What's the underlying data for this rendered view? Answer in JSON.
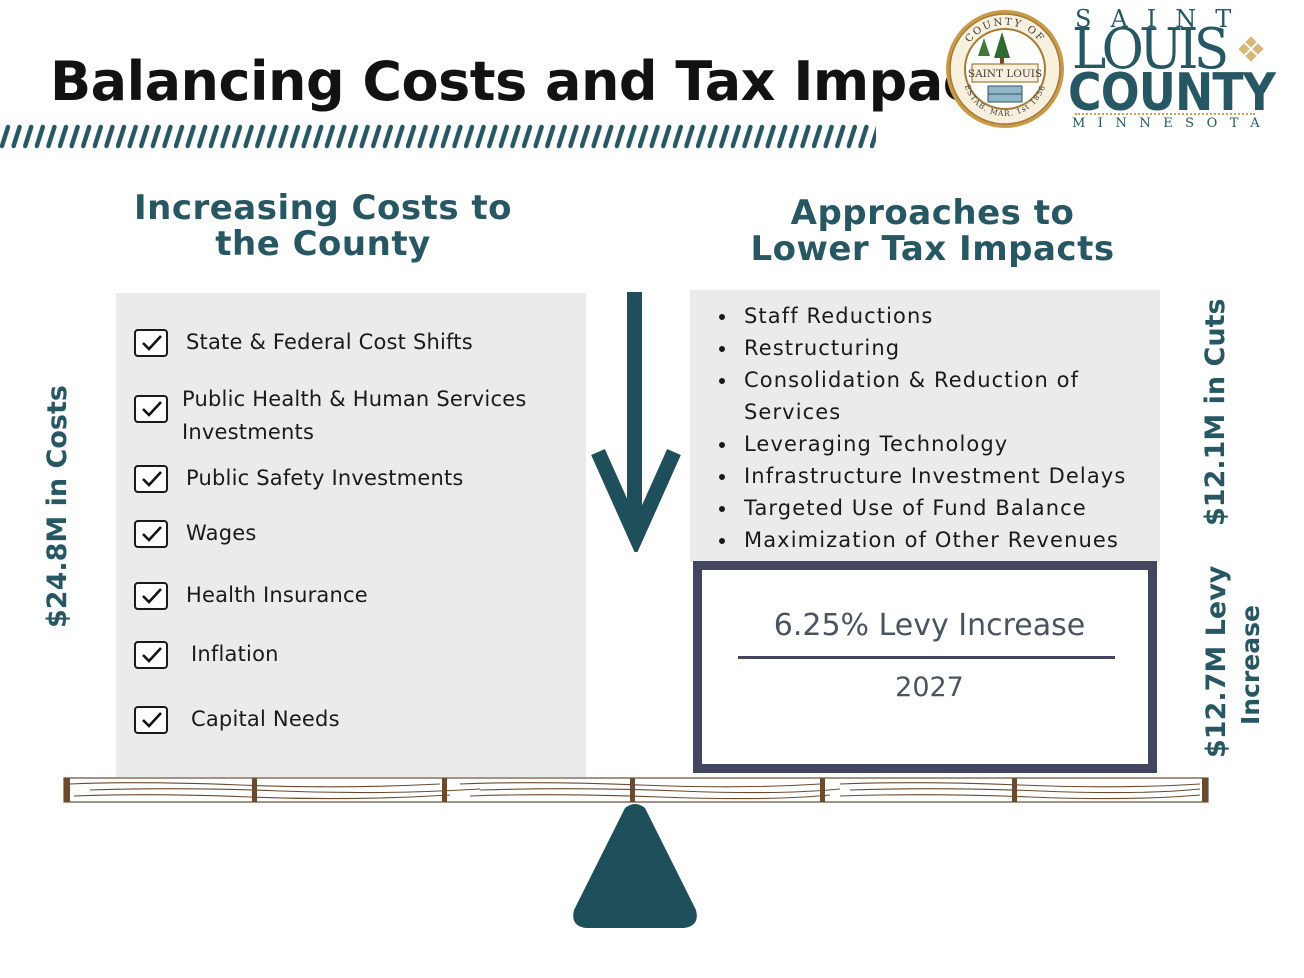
{
  "title": "Balancing Costs and Tax Impacts",
  "logo": {
    "seal_top_text": "COUNTY OF",
    "seal_name": "SAINT LOUIS",
    "seal_bottom_text": "ESTAB. MAR. 1st 1856",
    "wordmark_saint": "SAINT",
    "wordmark_louis": "LOUIS",
    "wordmark_county": "COUNTY",
    "wordmark_state": "MINNESOTA"
  },
  "left": {
    "heading_line1": "Increasing Costs to",
    "heading_line2": "the County",
    "side_label": "$24.8M in Costs",
    "items": [
      {
        "label": "State & Federal Cost Shifts"
      },
      {
        "label": "Public Health & Human Services Investments"
      },
      {
        "label": "Public Safety Investments"
      },
      {
        "label": "Wages"
      },
      {
        "label": "Health Insurance"
      },
      {
        "label": "Inflation"
      },
      {
        "label": "Capital Needs"
      }
    ]
  },
  "right": {
    "heading_line1": "Approaches to",
    "heading_line2": "Lower Tax Impacts",
    "side_label_cuts": "$12.1M in Cuts",
    "side_label_levy_line1": "$12.7M Levy",
    "side_label_levy_line2": "Increase",
    "approaches": [
      "Staff Reductions",
      "Restructuring",
      "Consolidation & Reduction of Services",
      "Leveraging Technology",
      "Infrastructure Investment Delays",
      "Targeted Use of Fund Balance",
      "Maximization of Other Revenues"
    ],
    "levy_label": "6.25% Levy Increase",
    "levy_year": "2027"
  },
  "colors": {
    "teal": "#275762",
    "dark_teal": "#1f4f5a",
    "navy_box": "#424660",
    "panel_gray": "#ebebeb",
    "wood": "#6b4a2f"
  },
  "icons": [
    "checkbox-check-icon",
    "down-arrow-icon",
    "fulcrum-icon",
    "county-seal-icon"
  ]
}
